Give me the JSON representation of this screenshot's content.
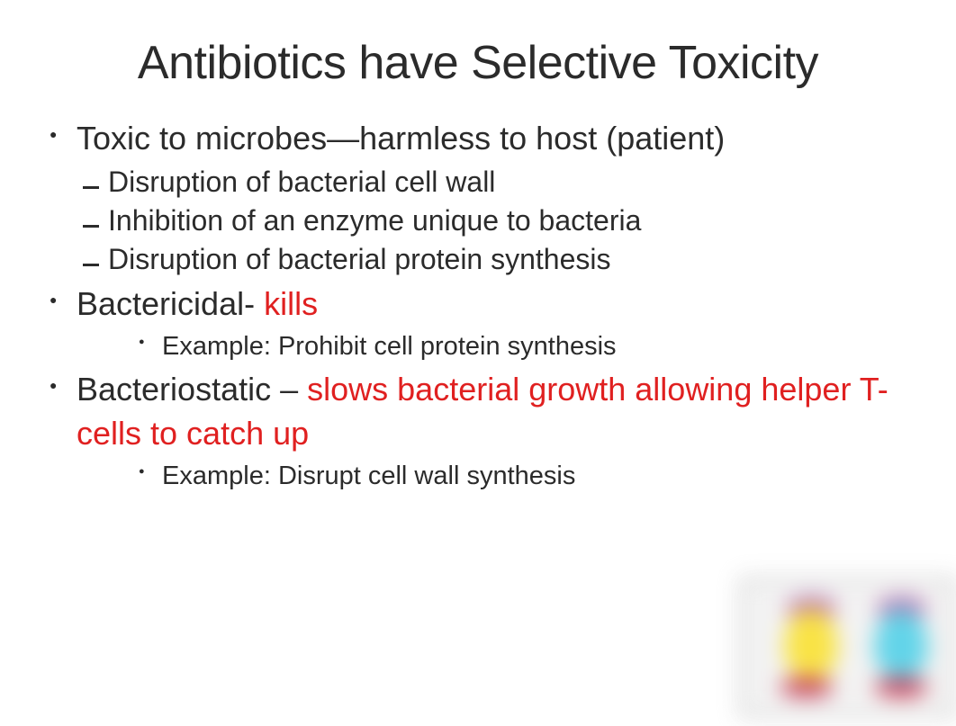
{
  "title": "Antibiotics have Selective Toxicity",
  "title_fontsize": 52,
  "text_color": "#2b2b2b",
  "highlight_color": "#e02020",
  "background_color": "#ffffff",
  "bullets": [
    {
      "text": "Toxic to microbes—harmless to host (patient)",
      "sub_style": "dash",
      "subs": [
        "Disruption of bacterial cell wall",
        "Inhibition of an enzyme unique to bacteria",
        "Disruption of bacterial protein synthesis"
      ]
    },
    {
      "prefix": "Bactericidal- ",
      "highlight": "kills",
      "sub_style": "dot",
      "subs": [
        "Example: Prohibit cell protein synthesis"
      ]
    },
    {
      "prefix": "Bacteriostatic – ",
      "highlight": "slows bacterial growth allowing helper T-cells to catch up",
      "sub_style": "dot",
      "subs": [
        "Example: Disrupt cell wall synthesis"
      ]
    }
  ],
  "corner_image": {
    "description": "blurred illustration of two cartoon microbe figures",
    "frame_color": "#bcbcbc",
    "bg_color": "#f3f3f3",
    "left_body_color": "#f9e23c",
    "right_body_color": "#5ad2e8",
    "cap_color": "#9c5aa8",
    "foot_color": "#c43b55"
  }
}
